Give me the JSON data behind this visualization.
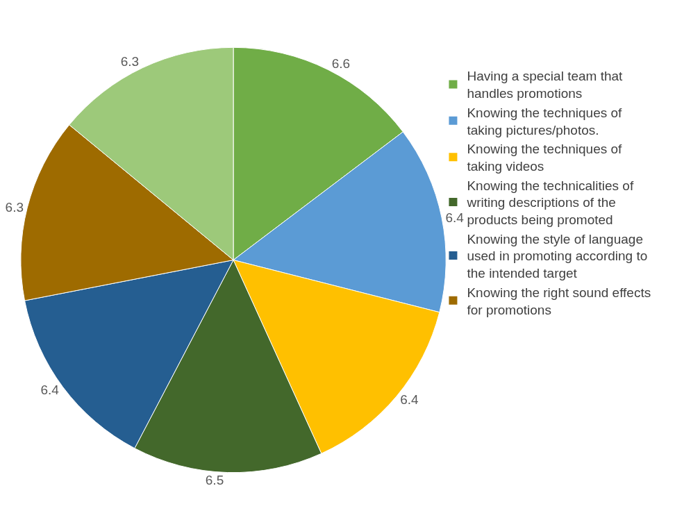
{
  "chart_data": {
    "type": "pie",
    "categories": [
      "Having a special team that handles promotions",
      "Knowing the techniques of taking pictures/photos.",
      "Knowing the techniques of taking videos",
      "Knowing the technicalities of writing descriptions of the products being promoted",
      "Knowing the style of language used in promoting according to the intended target",
      "Knowing the right sound effects for promotions",
      null
    ],
    "values": [
      6.6,
      6.4,
      6.4,
      6.5,
      6.4,
      6.3,
      6.3
    ],
    "colors": [
      "#70ad47",
      "#5b9bd5",
      "#ffc000",
      "#43682b",
      "#255e91",
      "#9e6b00",
      "#9dc97a"
    ],
    "data_labels": true,
    "legend": "right"
  }
}
